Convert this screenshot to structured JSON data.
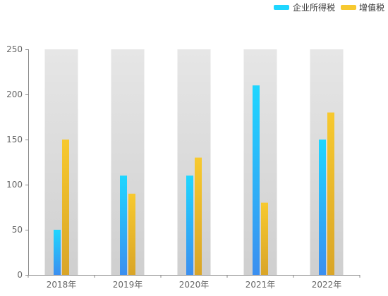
{
  "chart_data": {
    "type": "bar",
    "categories": [
      "2018年",
      "2019年",
      "2020年",
      "2021年",
      "2022年"
    ],
    "series": [
      {
        "name": "企业所得税",
        "values": [
          50,
          110,
          110,
          210,
          150
        ],
        "color_top": "#1fd6ff",
        "color_bottom": "#3b8ff0"
      },
      {
        "name": "增值税",
        "values": [
          150,
          90,
          130,
          80,
          180
        ],
        "color_top": "#f7c92f",
        "color_bottom": "#d9a528"
      }
    ],
    "ylim": [
      0,
      250
    ],
    "yticks": [
      0,
      50,
      100,
      150,
      200,
      250
    ],
    "legend_position": "top-right",
    "background_bar_color_top": "#e6e6e6",
    "background_bar_color_bottom": "#cfcfcf",
    "axis_color": "#888888"
  }
}
